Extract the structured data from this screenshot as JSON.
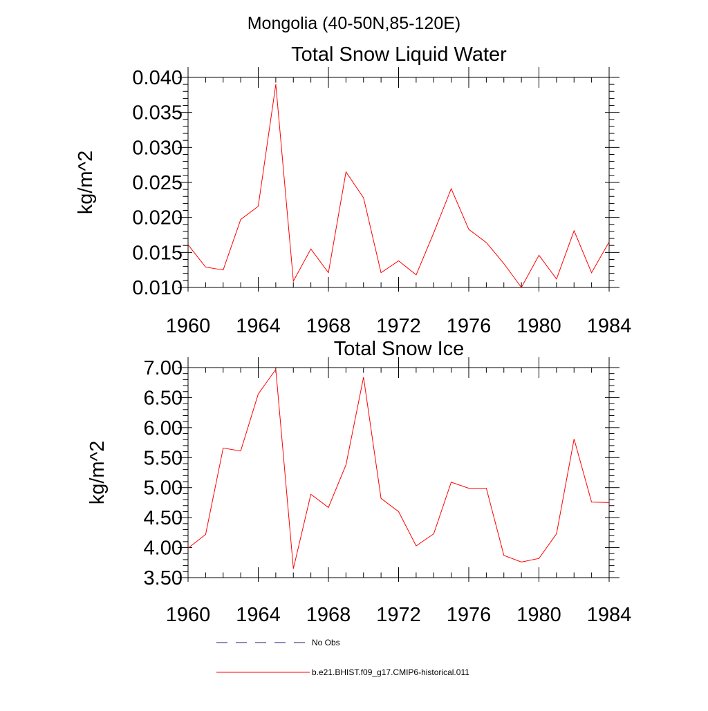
{
  "figure_title": "Mongolia (40-50N,85-120E)",
  "colors": {
    "model": "#ff0000",
    "obs": "#1a1a80",
    "axis": "#000000"
  },
  "legend": [
    {
      "label": "No Obs",
      "style": "dashed",
      "color": "#1a1a80"
    },
    {
      "label": "b.e21.BHIST.f09_g17.CMIP6-historical.011",
      "style": "solid",
      "color": "#ff0000"
    }
  ],
  "chart_data": [
    {
      "type": "line",
      "title": "Total Snow Liquid Water",
      "xlabel": "",
      "ylabel": "kg/m^2",
      "xlim": [
        1960,
        1984
      ],
      "ylim": [
        0.01,
        0.04
      ],
      "xticks": [
        "1960",
        "1964",
        "1968",
        "1972",
        "1976",
        "1980",
        "1984"
      ],
      "yticks": [
        "0.010",
        "0.015",
        "0.020",
        "0.025",
        "0.030",
        "0.035",
        "0.040"
      ],
      "grid": false,
      "x": [
        1960,
        1961,
        1962,
        1963,
        1964,
        1965,
        1966,
        1967,
        1968,
        1969,
        1970,
        1971,
        1972,
        1973,
        1974,
        1975,
        1976,
        1977,
        1978,
        1979,
        1980,
        1981,
        1982,
        1983,
        1984
      ],
      "series": [
        {
          "name": "b.e21.BHIST.f09_g17.CMIP6-historical.011",
          "values": [
            0.0161,
            0.0129,
            0.0125,
            0.0197,
            0.0216,
            0.039,
            0.0109,
            0.0155,
            0.0121,
            0.0265,
            0.0228,
            0.0121,
            0.0138,
            0.0118,
            0.0178,
            0.0241,
            0.0183,
            0.0164,
            0.0134,
            0.01,
            0.0146,
            0.0112,
            0.0181,
            0.0121,
            0.0165
          ]
        }
      ]
    },
    {
      "type": "line",
      "title": "Total Snow Ice",
      "xlabel": "",
      "ylabel": "kg/m^2",
      "xlim": [
        1960,
        1984
      ],
      "ylim": [
        3.5,
        7.0
      ],
      "xticks": [
        "1960",
        "1964",
        "1968",
        "1972",
        "1976",
        "1980",
        "1984"
      ],
      "yticks": [
        "3.50",
        "4.00",
        "4.50",
        "5.00",
        "5.50",
        "6.00",
        "6.50",
        "7.00"
      ],
      "grid": false,
      "x": [
        1960,
        1961,
        1962,
        1963,
        1964,
        1965,
        1966,
        1967,
        1968,
        1969,
        1970,
        1971,
        1972,
        1973,
        1974,
        1975,
        1976,
        1977,
        1978,
        1979,
        1980,
        1981,
        1982,
        1983,
        1984
      ],
      "series": [
        {
          "name": "b.e21.BHIST.f09_g17.CMIP6-historical.011",
          "values": [
            3.99,
            4.22,
            5.66,
            5.61,
            6.56,
            6.97,
            3.65,
            4.89,
            4.67,
            5.38,
            6.84,
            4.82,
            4.6,
            4.03,
            4.23,
            5.09,
            4.99,
            4.99,
            3.87,
            3.76,
            3.82,
            4.23,
            5.81,
            4.76,
            4.75
          ]
        }
      ]
    }
  ]
}
